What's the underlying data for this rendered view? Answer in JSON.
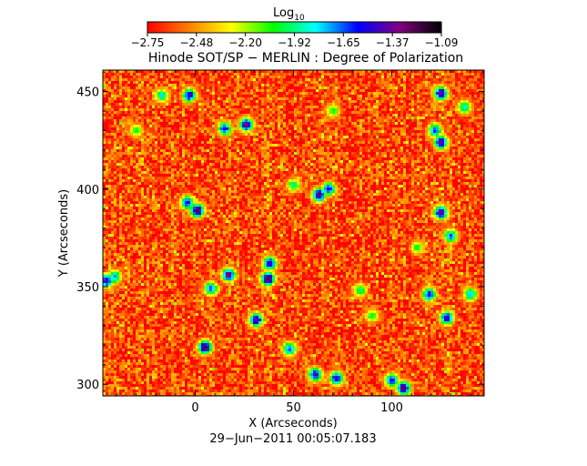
{
  "chart_data": {
    "type": "heatmap",
    "title": "Hinode SOT/SP − MERLIN : Degree of Polarization",
    "xlabel": "X (Arcseconds)",
    "ylabel": "Y (Arcseconds)",
    "timestamp": "29−Jun−2011 00:05:07.183",
    "xlim": [
      -47,
      147
    ],
    "ylim": [
      294,
      461
    ],
    "xticks": [
      "0",
      "50",
      "100"
    ],
    "yticks": [
      "300",
      "350",
      "400",
      "450"
    ],
    "colorbar": {
      "label_prefix": "Log",
      "label_sub": "10",
      "scale": "log10",
      "range": [
        -2.75,
        -1.09
      ],
      "ticks": [
        "−2.75",
        "−2.48",
        "−2.20",
        "−1.92",
        "−1.65",
        "−1.37",
        "−1.09"
      ],
      "colors": [
        "#ff0000",
        "#ff8000",
        "#ffff00",
        "#00ff00",
        "#00ffff",
        "#0000ff",
        "#800080",
        "#000000"
      ]
    },
    "features": [
      {
        "x": 26,
        "y": 433,
        "v": -1.3
      },
      {
        "x": 15,
        "y": 431,
        "v": -1.5
      },
      {
        "x": -3,
        "y": 448,
        "v": -1.4
      },
      {
        "x": -17,
        "y": 448,
        "v": -1.8
      },
      {
        "x": 1,
        "y": 389,
        "v": -1.2
      },
      {
        "x": -4,
        "y": 393,
        "v": -1.5
      },
      {
        "x": 63,
        "y": 397,
        "v": -1.25
      },
      {
        "x": 68,
        "y": 400,
        "v": -1.5
      },
      {
        "x": 50,
        "y": 402,
        "v": -1.9
      },
      {
        "x": 37,
        "y": 354,
        "v": -1.2
      },
      {
        "x": 38,
        "y": 362,
        "v": -1.4
      },
      {
        "x": 17,
        "y": 356,
        "v": -1.3
      },
      {
        "x": 8,
        "y": 349,
        "v": -1.6
      },
      {
        "x": 31,
        "y": 333,
        "v": -1.3
      },
      {
        "x": 5,
        "y": 319,
        "v": -1.25
      },
      {
        "x": 48,
        "y": 318,
        "v": -1.6
      },
      {
        "x": 61,
        "y": 305,
        "v": -1.4
      },
      {
        "x": 72,
        "y": 303,
        "v": -1.4
      },
      {
        "x": 106,
        "y": 298,
        "v": -1.25
      },
      {
        "x": 100,
        "y": 302,
        "v": -1.5
      },
      {
        "x": 125,
        "y": 449,
        "v": -1.3
      },
      {
        "x": 137,
        "y": 442,
        "v": -1.8
      },
      {
        "x": 125,
        "y": 424,
        "v": -1.3
      },
      {
        "x": 122,
        "y": 430,
        "v": -1.6
      },
      {
        "x": 125,
        "y": 388,
        "v": -1.3
      },
      {
        "x": 130,
        "y": 376,
        "v": -1.6
      },
      {
        "x": 119,
        "y": 346,
        "v": -1.5
      },
      {
        "x": 128,
        "y": 334,
        "v": -1.4
      },
      {
        "x": 140,
        "y": 346,
        "v": -1.7
      },
      {
        "x": -45,
        "y": 353,
        "v": -1.4
      },
      {
        "x": -41,
        "y": 355,
        "v": -1.7
      },
      {
        "x": 84,
        "y": 348,
        "v": -1.9
      },
      {
        "x": 90,
        "y": 335,
        "v": -2.0
      },
      {
        "x": 113,
        "y": 370,
        "v": -2.0
      },
      {
        "x": -30,
        "y": 430,
        "v": -2.0
      },
      {
        "x": 70,
        "y": 440,
        "v": -2.0
      }
    ]
  }
}
